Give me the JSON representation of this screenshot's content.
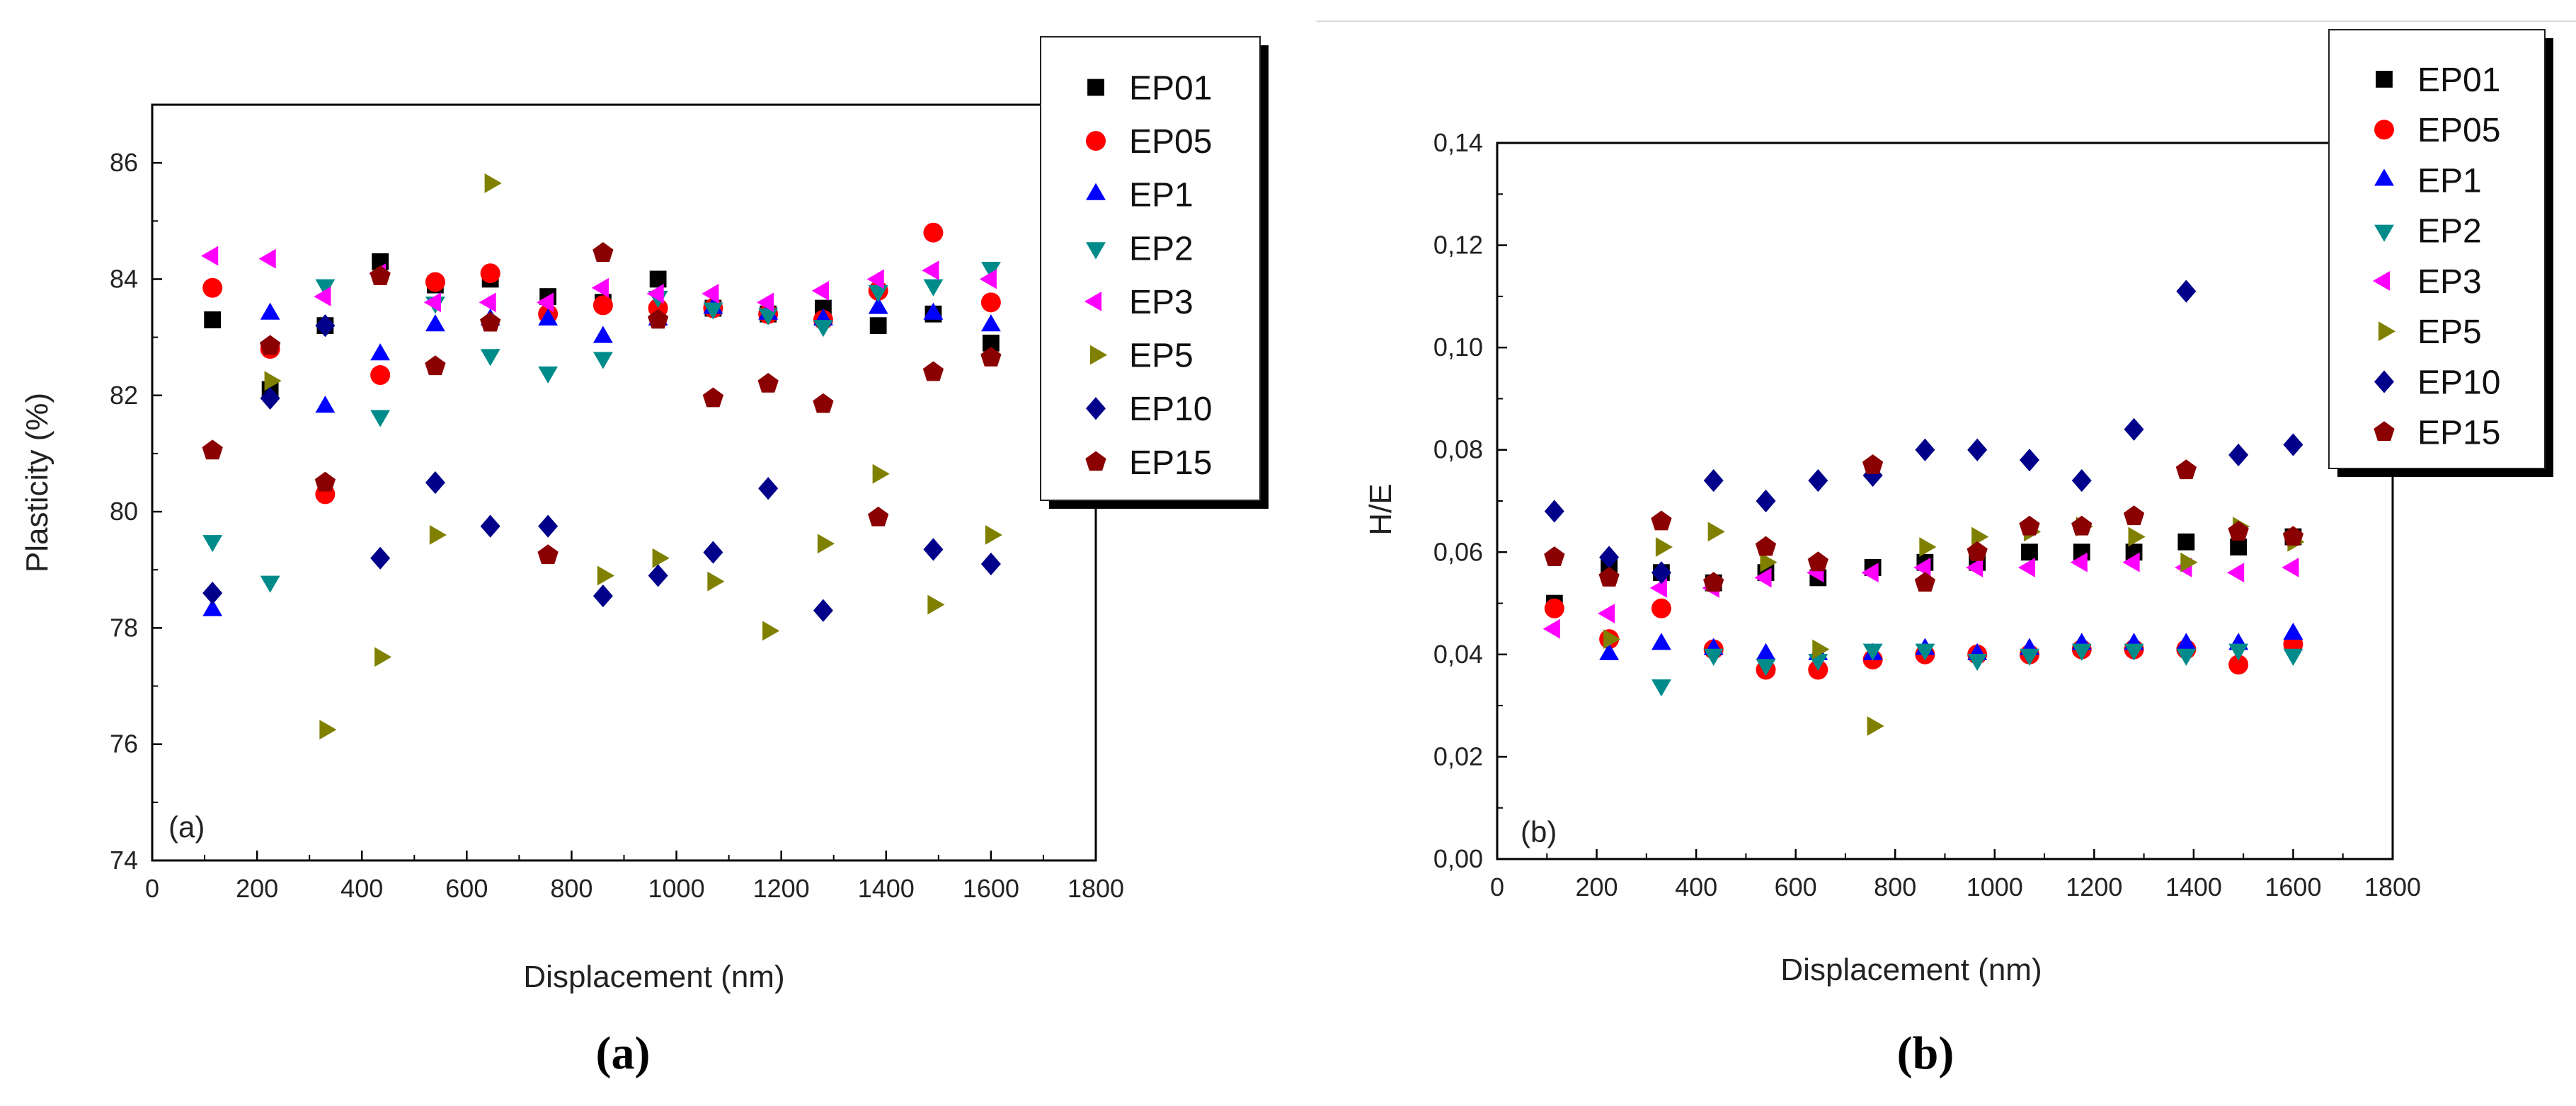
{
  "chart_data": [
    {
      "type": "scatter",
      "panel_label": "(a)",
      "caption": "(a)",
      "title": "",
      "xlabel": "Displacement (nm)",
      "ylabel": "Plasticity (%)",
      "xlim": [
        0,
        1800
      ],
      "ylim": [
        74,
        87
      ],
      "xticks": [
        0,
        200,
        400,
        600,
        800,
        1000,
        1200,
        1400,
        1600,
        1800
      ],
      "yticks": [
        74,
        76,
        78,
        80,
        82,
        84,
        86
      ],
      "legend_position": "top-right",
      "series": [
        {
          "name": "EP01",
          "color": "#000000",
          "marker": "square",
          "points": [
            [
              115,
              83.3
            ],
            [
              225,
              82.1
            ],
            [
              330,
              83.2
            ],
            [
              435,
              84.3
            ],
            [
              540,
              83.9
            ],
            [
              645,
              84.0
            ],
            [
              755,
              83.7
            ],
            [
              860,
              83.6
            ],
            [
              965,
              84.0
            ],
            [
              1070,
              83.5
            ],
            [
              1175,
              83.4
            ],
            [
              1280,
              83.5
            ],
            [
              1385,
              83.2
            ],
            [
              1490,
              83.4
            ],
            [
              1600,
              82.9
            ]
          ]
        },
        {
          "name": "EP05",
          "color": "#ff0000",
          "marker": "circle",
          "points": [
            [
              115,
              83.85
            ],
            [
              225,
              82.8
            ],
            [
              330,
              80.3
            ],
            [
              435,
              82.35
            ],
            [
              540,
              83.95
            ],
            [
              645,
              84.1
            ],
            [
              755,
              83.4
            ],
            [
              860,
              83.55
            ],
            [
              965,
              83.5
            ],
            [
              1070,
              83.5
            ],
            [
              1175,
              83.4
            ],
            [
              1280,
              83.3
            ],
            [
              1385,
              83.8
            ],
            [
              1490,
              84.8
            ],
            [
              1600,
              83.6
            ]
          ]
        },
        {
          "name": "EP1",
          "color": "#0000ff",
          "marker": "triangle-up",
          "points": [
            [
              115,
              78.3
            ],
            [
              225,
              83.4
            ],
            [
              330,
              81.8
            ],
            [
              435,
              82.7
            ],
            [
              540,
              83.2
            ],
            [
              645,
              83.3
            ],
            [
              755,
              83.3
            ],
            [
              860,
              83.0
            ],
            [
              965,
              83.3
            ],
            [
              1070,
              83.5
            ],
            [
              1175,
              83.4
            ],
            [
              1280,
              83.3
            ],
            [
              1385,
              83.5
            ],
            [
              1490,
              83.4
            ],
            [
              1600,
              83.2
            ]
          ]
        },
        {
          "name": "EP2",
          "color": "#008b8b",
          "marker": "triangle-down",
          "points": [
            [
              115,
              79.5
            ],
            [
              225,
              78.8
            ],
            [
              330,
              83.9
            ],
            [
              435,
              81.65
            ],
            [
              540,
              83.6
            ],
            [
              645,
              82.7
            ],
            [
              755,
              82.4
            ],
            [
              860,
              82.65
            ],
            [
              965,
              83.7
            ],
            [
              1070,
              83.5
            ],
            [
              1175,
              83.4
            ],
            [
              1280,
              83.2
            ],
            [
              1385,
              83.8
            ],
            [
              1490,
              83.9
            ],
            [
              1600,
              84.2
            ]
          ]
        },
        {
          "name": "EP3",
          "color": "#ff00ff",
          "marker": "triangle-left",
          "points": [
            [
              115,
              84.4
            ],
            [
              225,
              84.35
            ],
            [
              330,
              83.7
            ],
            [
              435,
              84.1
            ],
            [
              540,
              83.6
            ],
            [
              645,
              83.6
            ],
            [
              755,
              83.6
            ],
            [
              860,
              83.85
            ],
            [
              965,
              83.75
            ],
            [
              1070,
              83.75
            ],
            [
              1175,
              83.6
            ],
            [
              1280,
              83.8
            ],
            [
              1385,
              84.0
            ],
            [
              1490,
              84.15
            ],
            [
              1600,
              84.0
            ]
          ]
        },
        {
          "name": "EP5",
          "color": "#808000",
          "marker": "triangle-right",
          "points": [
            [
              225,
              82.25
            ],
            [
              330,
              76.25
            ],
            [
              435,
              77.5
            ],
            [
              540,
              79.6
            ],
            [
              645,
              85.65
            ],
            [
              860,
              78.9
            ],
            [
              965,
              79.2
            ],
            [
              1070,
              78.8
            ],
            [
              1175,
              77.95
            ],
            [
              1280,
              79.45
            ],
            [
              1385,
              80.65
            ],
            [
              1490,
              78.4
            ],
            [
              1600,
              79.6
            ]
          ]
        },
        {
          "name": "EP10",
          "color": "#00008b",
          "marker": "diamond",
          "points": [
            [
              115,
              78.6
            ],
            [
              225,
              81.95
            ],
            [
              330,
              83.2
            ],
            [
              435,
              79.2
            ],
            [
              540,
              80.5
            ],
            [
              645,
              79.75
            ],
            [
              755,
              79.75
            ],
            [
              860,
              78.55
            ],
            [
              965,
              78.9
            ],
            [
              1070,
              79.3
            ],
            [
              1175,
              80.4
            ],
            [
              1280,
              78.3
            ],
            [
              1490,
              79.35
            ],
            [
              1600,
              79.1
            ]
          ]
        },
        {
          "name": "EP15",
          "color": "#8b0000",
          "marker": "pentagon",
          "points": [
            [
              115,
              81.05
            ],
            [
              225,
              82.85
            ],
            [
              330,
              80.5
            ],
            [
              435,
              84.05
            ],
            [
              540,
              82.5
            ],
            [
              645,
              83.25
            ],
            [
              755,
              79.25
            ],
            [
              860,
              84.45
            ],
            [
              965,
              83.3
            ],
            [
              1070,
              81.95
            ],
            [
              1175,
              82.2
            ],
            [
              1280,
              81.85
            ],
            [
              1385,
              79.9
            ],
            [
              1490,
              82.4
            ],
            [
              1600,
              82.65
            ]
          ]
        }
      ]
    },
    {
      "type": "scatter",
      "panel_label": "(b)",
      "caption": "(b)",
      "title": "",
      "xlabel": "Displacement (nm)",
      "ylabel": "H/E",
      "xlim": [
        0,
        1800
      ],
      "ylim": [
        0,
        0.14
      ],
      "xticks": [
        0,
        200,
        400,
        600,
        800,
        1000,
        1200,
        1400,
        1600,
        1800
      ],
      "yticks": [
        0,
        0.02,
        0.04,
        0.06,
        0.08,
        0.1,
        0.12,
        0.14
      ],
      "ytick_labels": [
        "0,00",
        "0,02",
        "0,04",
        "0,06",
        "0,08",
        "0,10",
        "0,12",
        "0,14"
      ],
      "legend_position": "top-right",
      "series": [
        {
          "name": "EP01",
          "color": "#000000",
          "marker": "square",
          "points": [
            [
              115,
              0.05
            ],
            [
              225,
              0.057
            ],
            [
              330,
              0.056
            ],
            [
              435,
              0.054
            ],
            [
              540,
              0.056
            ],
            [
              645,
              0.055
            ],
            [
              755,
              0.057
            ],
            [
              860,
              0.058
            ],
            [
              965,
              0.058
            ],
            [
              1070,
              0.06
            ],
            [
              1175,
              0.06
            ],
            [
              1280,
              0.06
            ],
            [
              1385,
              0.062
            ],
            [
              1490,
              0.061
            ],
            [
              1600,
              0.063
            ]
          ]
        },
        {
          "name": "EP05",
          "color": "#ff0000",
          "marker": "circle",
          "points": [
            [
              115,
              0.049
            ],
            [
              225,
              0.043
            ],
            [
              330,
              0.049
            ],
            [
              435,
              0.041
            ],
            [
              540,
              0.037
            ],
            [
              645,
              0.037
            ],
            [
              755,
              0.039
            ],
            [
              860,
              0.04
            ],
            [
              965,
              0.04
            ],
            [
              1070,
              0.04
            ],
            [
              1175,
              0.041
            ],
            [
              1280,
              0.041
            ],
            [
              1385,
              0.041
            ],
            [
              1490,
              0.038
            ],
            [
              1600,
              0.042
            ]
          ]
        },
        {
          "name": "EP1",
          "color": "#0000ff",
          "marker": "triangle-up",
          "points": [
            [
              225,
              0.04
            ],
            [
              330,
              0.042
            ],
            [
              435,
              0.041
            ],
            [
              540,
              0.04
            ],
            [
              645,
              0.04
            ],
            [
              755,
              0.04
            ],
            [
              860,
              0.041
            ],
            [
              965,
              0.04
            ],
            [
              1070,
              0.041
            ],
            [
              1175,
              0.042
            ],
            [
              1280,
              0.042
            ],
            [
              1385,
              0.042
            ],
            [
              1490,
              0.042
            ],
            [
              1600,
              0.044
            ]
          ]
        },
        {
          "name": "EP2",
          "color": "#008b8b",
          "marker": "triangle-down",
          "points": [
            [
              330,
              0.034
            ],
            [
              435,
              0.04
            ],
            [
              540,
              0.038
            ],
            [
              645,
              0.039
            ],
            [
              755,
              0.041
            ],
            [
              860,
              0.041
            ],
            [
              965,
              0.039
            ],
            [
              1070,
              0.04
            ],
            [
              1175,
              0.041
            ],
            [
              1280,
              0.041
            ],
            [
              1385,
              0.04
            ],
            [
              1490,
              0.041
            ],
            [
              1600,
              0.04
            ]
          ]
        },
        {
          "name": "EP3",
          "color": "#ff00ff",
          "marker": "triangle-left",
          "points": [
            [
              115,
              0.045
            ],
            [
              225,
              0.048
            ],
            [
              330,
              0.053
            ],
            [
              435,
              0.053
            ],
            [
              540,
              0.055
            ],
            [
              645,
              0.056
            ],
            [
              755,
              0.056
            ],
            [
              860,
              0.057
            ],
            [
              965,
              0.057
            ],
            [
              1070,
              0.057
            ],
            [
              1175,
              0.058
            ],
            [
              1280,
              0.058
            ],
            [
              1385,
              0.057
            ],
            [
              1490,
              0.056
            ],
            [
              1600,
              0.057
            ]
          ]
        },
        {
          "name": "EP5",
          "color": "#808000",
          "marker": "triangle-right",
          "points": [
            [
              225,
              0.043
            ],
            [
              330,
              0.061
            ],
            [
              435,
              0.064
            ],
            [
              540,
              0.058
            ],
            [
              645,
              0.041
            ],
            [
              755,
              0.026
            ],
            [
              860,
              0.061
            ],
            [
              965,
              0.063
            ],
            [
              1070,
              0.064
            ],
            [
              1175,
              0.065
            ],
            [
              1280,
              0.063
            ],
            [
              1385,
              0.058
            ],
            [
              1490,
              0.065
            ],
            [
              1600,
              0.062
            ]
          ]
        },
        {
          "name": "EP10",
          "color": "#00008b",
          "marker": "diamond",
          "points": [
            [
              115,
              0.068
            ],
            [
              225,
              0.059
            ],
            [
              330,
              0.056
            ],
            [
              435,
              0.074
            ],
            [
              540,
              0.07
            ],
            [
              645,
              0.074
            ],
            [
              755,
              0.075
            ],
            [
              860,
              0.08
            ],
            [
              965,
              0.08
            ],
            [
              1070,
              0.078
            ],
            [
              1175,
              0.074
            ],
            [
              1280,
              0.084
            ],
            [
              1385,
              0.111
            ],
            [
              1490,
              0.079
            ],
            [
              1600,
              0.081
            ]
          ]
        },
        {
          "name": "EP15",
          "color": "#8b0000",
          "marker": "pentagon",
          "points": [
            [
              115,
              0.059
            ],
            [
              225,
              0.055
            ],
            [
              330,
              0.066
            ],
            [
              435,
              0.054
            ],
            [
              540,
              0.061
            ],
            [
              645,
              0.058
            ],
            [
              755,
              0.077
            ],
            [
              860,
              0.054
            ],
            [
              965,
              0.06
            ],
            [
              1070,
              0.065
            ],
            [
              1175,
              0.065
            ],
            [
              1280,
              0.067
            ],
            [
              1385,
              0.076
            ],
            [
              1490,
              0.064
            ],
            [
              1600,
              0.063
            ]
          ]
        }
      ]
    }
  ]
}
